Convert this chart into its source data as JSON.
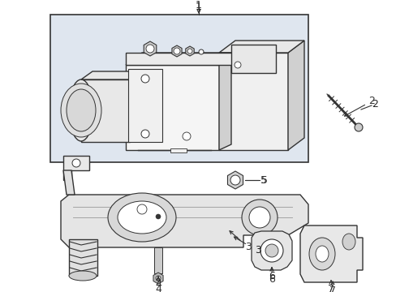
{
  "background_color": "#ffffff",
  "fig_width": 4.89,
  "fig_height": 3.6,
  "dpi": 100,
  "line_color": "#333333",
  "line_width": 1.0,
  "fill_light": "#e8e8e8",
  "fill_medium": "#d0d0d0",
  "fill_dark": "#b0b0b0",
  "label_fontsize": 8.5,
  "label_color": "#222222",
  "box_bg": "#dfe6ef"
}
